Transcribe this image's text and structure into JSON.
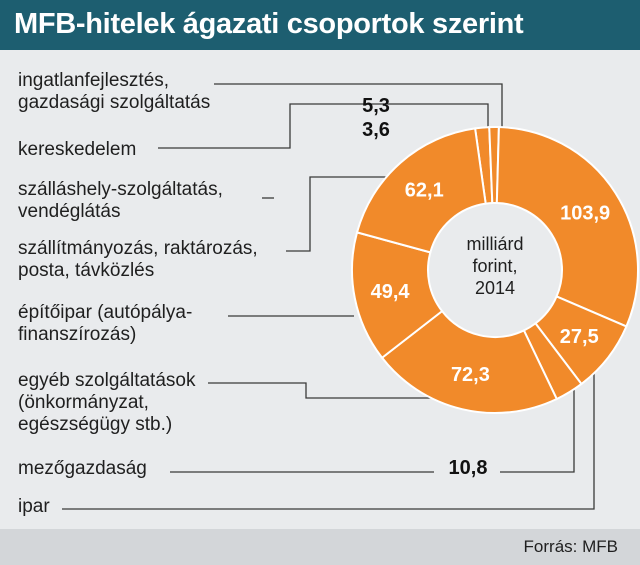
{
  "title": "MFB-hitelek ágazati csoportok szerint",
  "source": "Forrás: MFB",
  "center_label": [
    "milliárd",
    "forint,",
    "2014"
  ],
  "colors": {
    "header_bg": "#1d5e70",
    "slice": "#f18a2a",
    "slice_border": "#ffffff",
    "leader": "#3a3a3a",
    "background": "#e9ebed",
    "footer_bg": "#d3d6d9"
  },
  "categories": [
    {
      "label_lines": [
        "ingatlanfejlesztés,",
        "gazdasági szolgáltatás"
      ]
    },
    {
      "label_lines": [
        "kereskedelem"
      ]
    },
    {
      "label_lines": [
        "szálláshely-szolgáltatás,",
        "vendéglátás"
      ]
    },
    {
      "label_lines": [
        "szállítmányozás, raktározás,",
        "posta, távközlés"
      ]
    },
    {
      "label_lines": [
        "építőipar (autópálya-",
        "finanszírozás)"
      ]
    },
    {
      "label_lines": [
        "egyéb szolgáltatások",
        "(önkormányzat,",
        "egészségügy stb.)"
      ]
    },
    {
      "label_lines": [
        "mezőgazdaság"
      ]
    },
    {
      "label_lines": [
        "ipar"
      ]
    }
  ],
  "chart_data": {
    "type": "pie",
    "donut": true,
    "title": "MFB-hitelek ágazati csoportok szerint",
    "unit": "milliárd forint, 2014",
    "slices": [
      {
        "category": "ingatlanfejlesztés, gazdasági szolgáltatás",
        "value": 5.3,
        "value_label": "5,3"
      },
      {
        "category": "kereskedelem",
        "value": 3.6,
        "value_label": "3,6"
      },
      {
        "category": "ipar",
        "value": 103.9,
        "value_label": "103,9"
      },
      {
        "category": "mezőgazdaság",
        "value": 27.5,
        "value_label": "27,5"
      },
      {
        "category": "egyéb szolgáltatások (önkormányzat, egészségügy stb.)",
        "value": 10.8,
        "value_label": "10,8"
      },
      {
        "category": "építőipar (autópálya-finanszírozás)",
        "value": 72.3,
        "value_label": "72,3"
      },
      {
        "category": "szállítmányozás, raktározás, posta, távközlés",
        "value": 49.4,
        "value_label": "49,4"
      },
      {
        "category": "szálláshely-szolgáltatás, vendéglátás",
        "value": 62.1,
        "value_label": "62,1"
      }
    ]
  }
}
